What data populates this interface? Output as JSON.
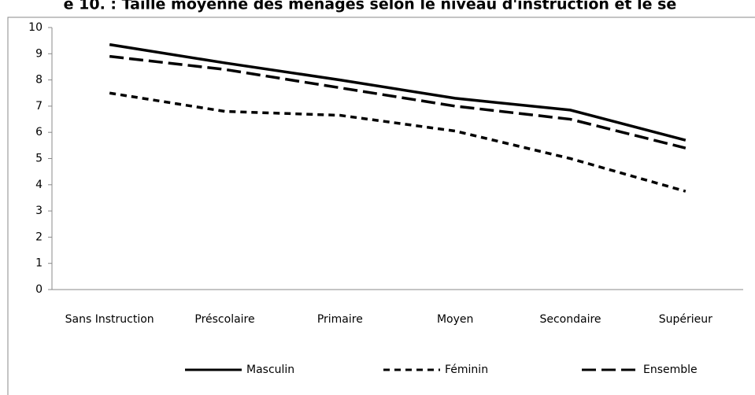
{
  "chart_data": {
    "type": "line",
    "title": "e 10. : Taille moyenne des ménages selon le niveau d'instruction et le se",
    "categories": [
      "Sans Instruction",
      "Préscolaire",
      "Primaire",
      "Moyen",
      "Secondaire",
      "Supérieur"
    ],
    "series": [
      {
        "name": "Masculin",
        "color": "#000000",
        "dash": "solid",
        "values": [
          9.35,
          8.65,
          8.0,
          7.3,
          6.85,
          5.7
        ]
      },
      {
        "name": "Féminin",
        "color": "#000000",
        "dash": "short",
        "values": [
          7.5,
          6.8,
          6.65,
          6.05,
          5.0,
          3.75
        ]
      },
      {
        "name": "Ensemble",
        "color": "#000000",
        "dash": "long",
        "values": [
          8.9,
          8.4,
          7.7,
          7.0,
          6.5,
          5.4
        ]
      }
    ],
    "ylim": [
      0,
      10
    ],
    "yticks": [
      0,
      1,
      2,
      3,
      4,
      5,
      6,
      7,
      8,
      9,
      10
    ],
    "grid": false,
    "legend": "bottom"
  }
}
